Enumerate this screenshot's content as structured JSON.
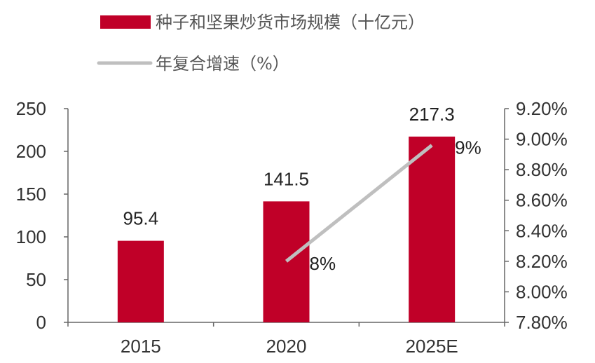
{
  "chart_data": {
    "type": "bar+line",
    "categories": [
      "2015",
      "2020",
      "2025E"
    ],
    "series": [
      {
        "name": "种子和坚果炒货市场规模（十亿元）",
        "type": "bar",
        "axis": "left",
        "color": "#C00028",
        "values": [
          95.4,
          141.5,
          217.3
        ],
        "data_labels": [
          "95.4",
          "141.5",
          "217.3"
        ]
      },
      {
        "name": "年复合增速（%）",
        "type": "line",
        "axis": "right",
        "color": "#BFBFBF",
        "values": [
          null,
          8.2,
          8.96
        ],
        "data_labels": [
          null,
          "8%",
          "9%"
        ]
      }
    ],
    "left_axis": {
      "ylim": [
        0,
        250
      ],
      "ticks": [
        "0",
        "50",
        "100",
        "150",
        "200",
        "250"
      ]
    },
    "right_axis": {
      "ylim": [
        7.8,
        9.2
      ],
      "ticks": [
        "7.80%",
        "8.00%",
        "8.20%",
        "8.40%",
        "8.60%",
        "8.80%",
        "9.00%",
        "9.20%"
      ]
    },
    "legend_position": "top",
    "grid": false
  }
}
